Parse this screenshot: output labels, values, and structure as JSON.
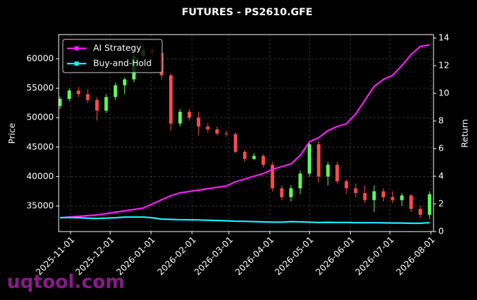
{
  "chart_data": {
    "type": "candlestick",
    "title": "FUTURES - PS2610.GFE",
    "ylabel": "Price",
    "y2label": "Return",
    "watermark": "uqtool.com",
    "up_color": "#5cff5c",
    "down_color": "#ff4a4a",
    "grid": true,
    "legend": "upper left",
    "x": [
      "2025-10-24",
      "2025-10-31",
      "2025-11-07",
      "2025-11-14",
      "2025-11-21",
      "2025-11-28",
      "2025-12-05",
      "2025-12-12",
      "2025-12-19",
      "2025-12-26",
      "2026-01-02",
      "2026-01-09",
      "2026-01-16",
      "2026-01-23",
      "2026-01-30",
      "2026-02-06",
      "2026-02-13",
      "2026-02-20",
      "2026-02-27",
      "2026-03-06",
      "2026-03-13",
      "2026-03-20",
      "2026-03-27",
      "2026-04-03",
      "2026-04-10",
      "2026-04-17",
      "2026-04-24",
      "2026-05-01",
      "2026-05-08",
      "2026-05-15",
      "2026-05-22",
      "2026-05-29",
      "2026-06-05",
      "2026-06-12",
      "2026-06-19",
      "2026-06-26",
      "2026-07-03",
      "2026-07-10",
      "2026-07-17",
      "2026-07-24",
      "2026-07-31"
    ],
    "open": [
      52000,
      53200,
      54600,
      54000,
      53000,
      51200,
      53500,
      55500,
      56500,
      60500,
      61500,
      61000,
      57200,
      49000,
      51000,
      50000,
      48500,
      48000,
      47300,
      47200,
      44200,
      43000,
      43500,
      42000,
      38000,
      36500,
      38000,
      40500,
      45500,
      40000,
      42000,
      39200,
      38000,
      37200,
      36000,
      37500,
      36500,
      36000,
      36800,
      34500,
      33500
    ],
    "high": [
      53600,
      55000,
      55200,
      54800,
      53500,
      54000,
      56000,
      56800,
      61000,
      62500,
      62000,
      61500,
      57500,
      51500,
      51500,
      51000,
      49000,
      48500,
      47800,
      47500,
      44500,
      44000,
      43800,
      42500,
      38500,
      38500,
      41000,
      46000,
      46000,
      42500,
      42500,
      39500,
      38800,
      38500,
      38500,
      38000,
      37500,
      37200,
      37000,
      35000,
      37500
    ],
    "low": [
      51500,
      52800,
      53500,
      52500,
      49500,
      50800,
      53000,
      54000,
      56000,
      59500,
      60500,
      56500,
      47800,
      48500,
      49500,
      47000,
      47500,
      47000,
      46800,
      44000,
      42500,
      42800,
      41500,
      37500,
      36000,
      35800,
      37000,
      40000,
      39000,
      38500,
      38800,
      37000,
      36500,
      35500,
      34000,
      35800,
      35500,
      35000,
      34000,
      33000,
      32800
    ],
    "close": [
      53200,
      54600,
      54000,
      53000,
      51200,
      53500,
      55500,
      56500,
      60500,
      61500,
      61000,
      57200,
      49000,
      51000,
      50000,
      48500,
      48000,
      47300,
      47200,
      44200,
      43000,
      43500,
      42000,
      38000,
      36500,
      38000,
      40500,
      45500,
      40000,
      42000,
      39200,
      38000,
      37200,
      36000,
      37500,
      36500,
      36000,
      36800,
      34500,
      33500,
      37000
    ],
    "series": [
      {
        "name": "AI Strategy",
        "color": "#ff1aff",
        "axis": "y2",
        "values": [
          1.0,
          1.05,
          1.1,
          1.15,
          1.2,
          1.3,
          1.4,
          1.5,
          1.6,
          1.7,
          2.0,
          2.3,
          2.6,
          2.8,
          2.9,
          3.0,
          3.1,
          3.2,
          3.3,
          3.6,
          3.8,
          4.0,
          4.2,
          4.5,
          4.7,
          4.9,
          5.5,
          6.5,
          6.8,
          7.3,
          7.6,
          7.8,
          8.5,
          9.5,
          10.5,
          11.0,
          11.3,
          12.0,
          12.8,
          13.4,
          13.5
        ]
      },
      {
        "name": "Buy-and-Hold",
        "color": "#1af0ff",
        "axis": "y2",
        "values": [
          1.0,
          1.02,
          1.0,
          0.97,
          0.95,
          0.97,
          1.0,
          1.05,
          1.05,
          1.05,
          1.0,
          0.9,
          0.88,
          0.86,
          0.85,
          0.84,
          0.82,
          0.8,
          0.78,
          0.75,
          0.74,
          0.72,
          0.7,
          0.68,
          0.68,
          0.72,
          0.7,
          0.68,
          0.66,
          0.67,
          0.66,
          0.66,
          0.64,
          0.64,
          0.64,
          0.63,
          0.62,
          0.62,
          0.6,
          0.6,
          0.65
        ]
      }
    ],
    "xlim": [
      "2025-10-23",
      "2026-08-03"
    ],
    "xticks": [
      "2025-11-01",
      "2025-12-01",
      "2026-01-01",
      "2026-02-01",
      "2026-03-01",
      "2026-04-01",
      "2026-05-01",
      "2026-06-01",
      "2026-07-01",
      "2026-08-01"
    ],
    "ylim": [
      30660,
      64110
    ],
    "yticks": [
      35000,
      40000,
      45000,
      50000,
      55000,
      60000
    ],
    "y2lim": [
      0,
      14.25
    ],
    "y2ticks": [
      0,
      2,
      4,
      6,
      8,
      10,
      12,
      14
    ]
  }
}
